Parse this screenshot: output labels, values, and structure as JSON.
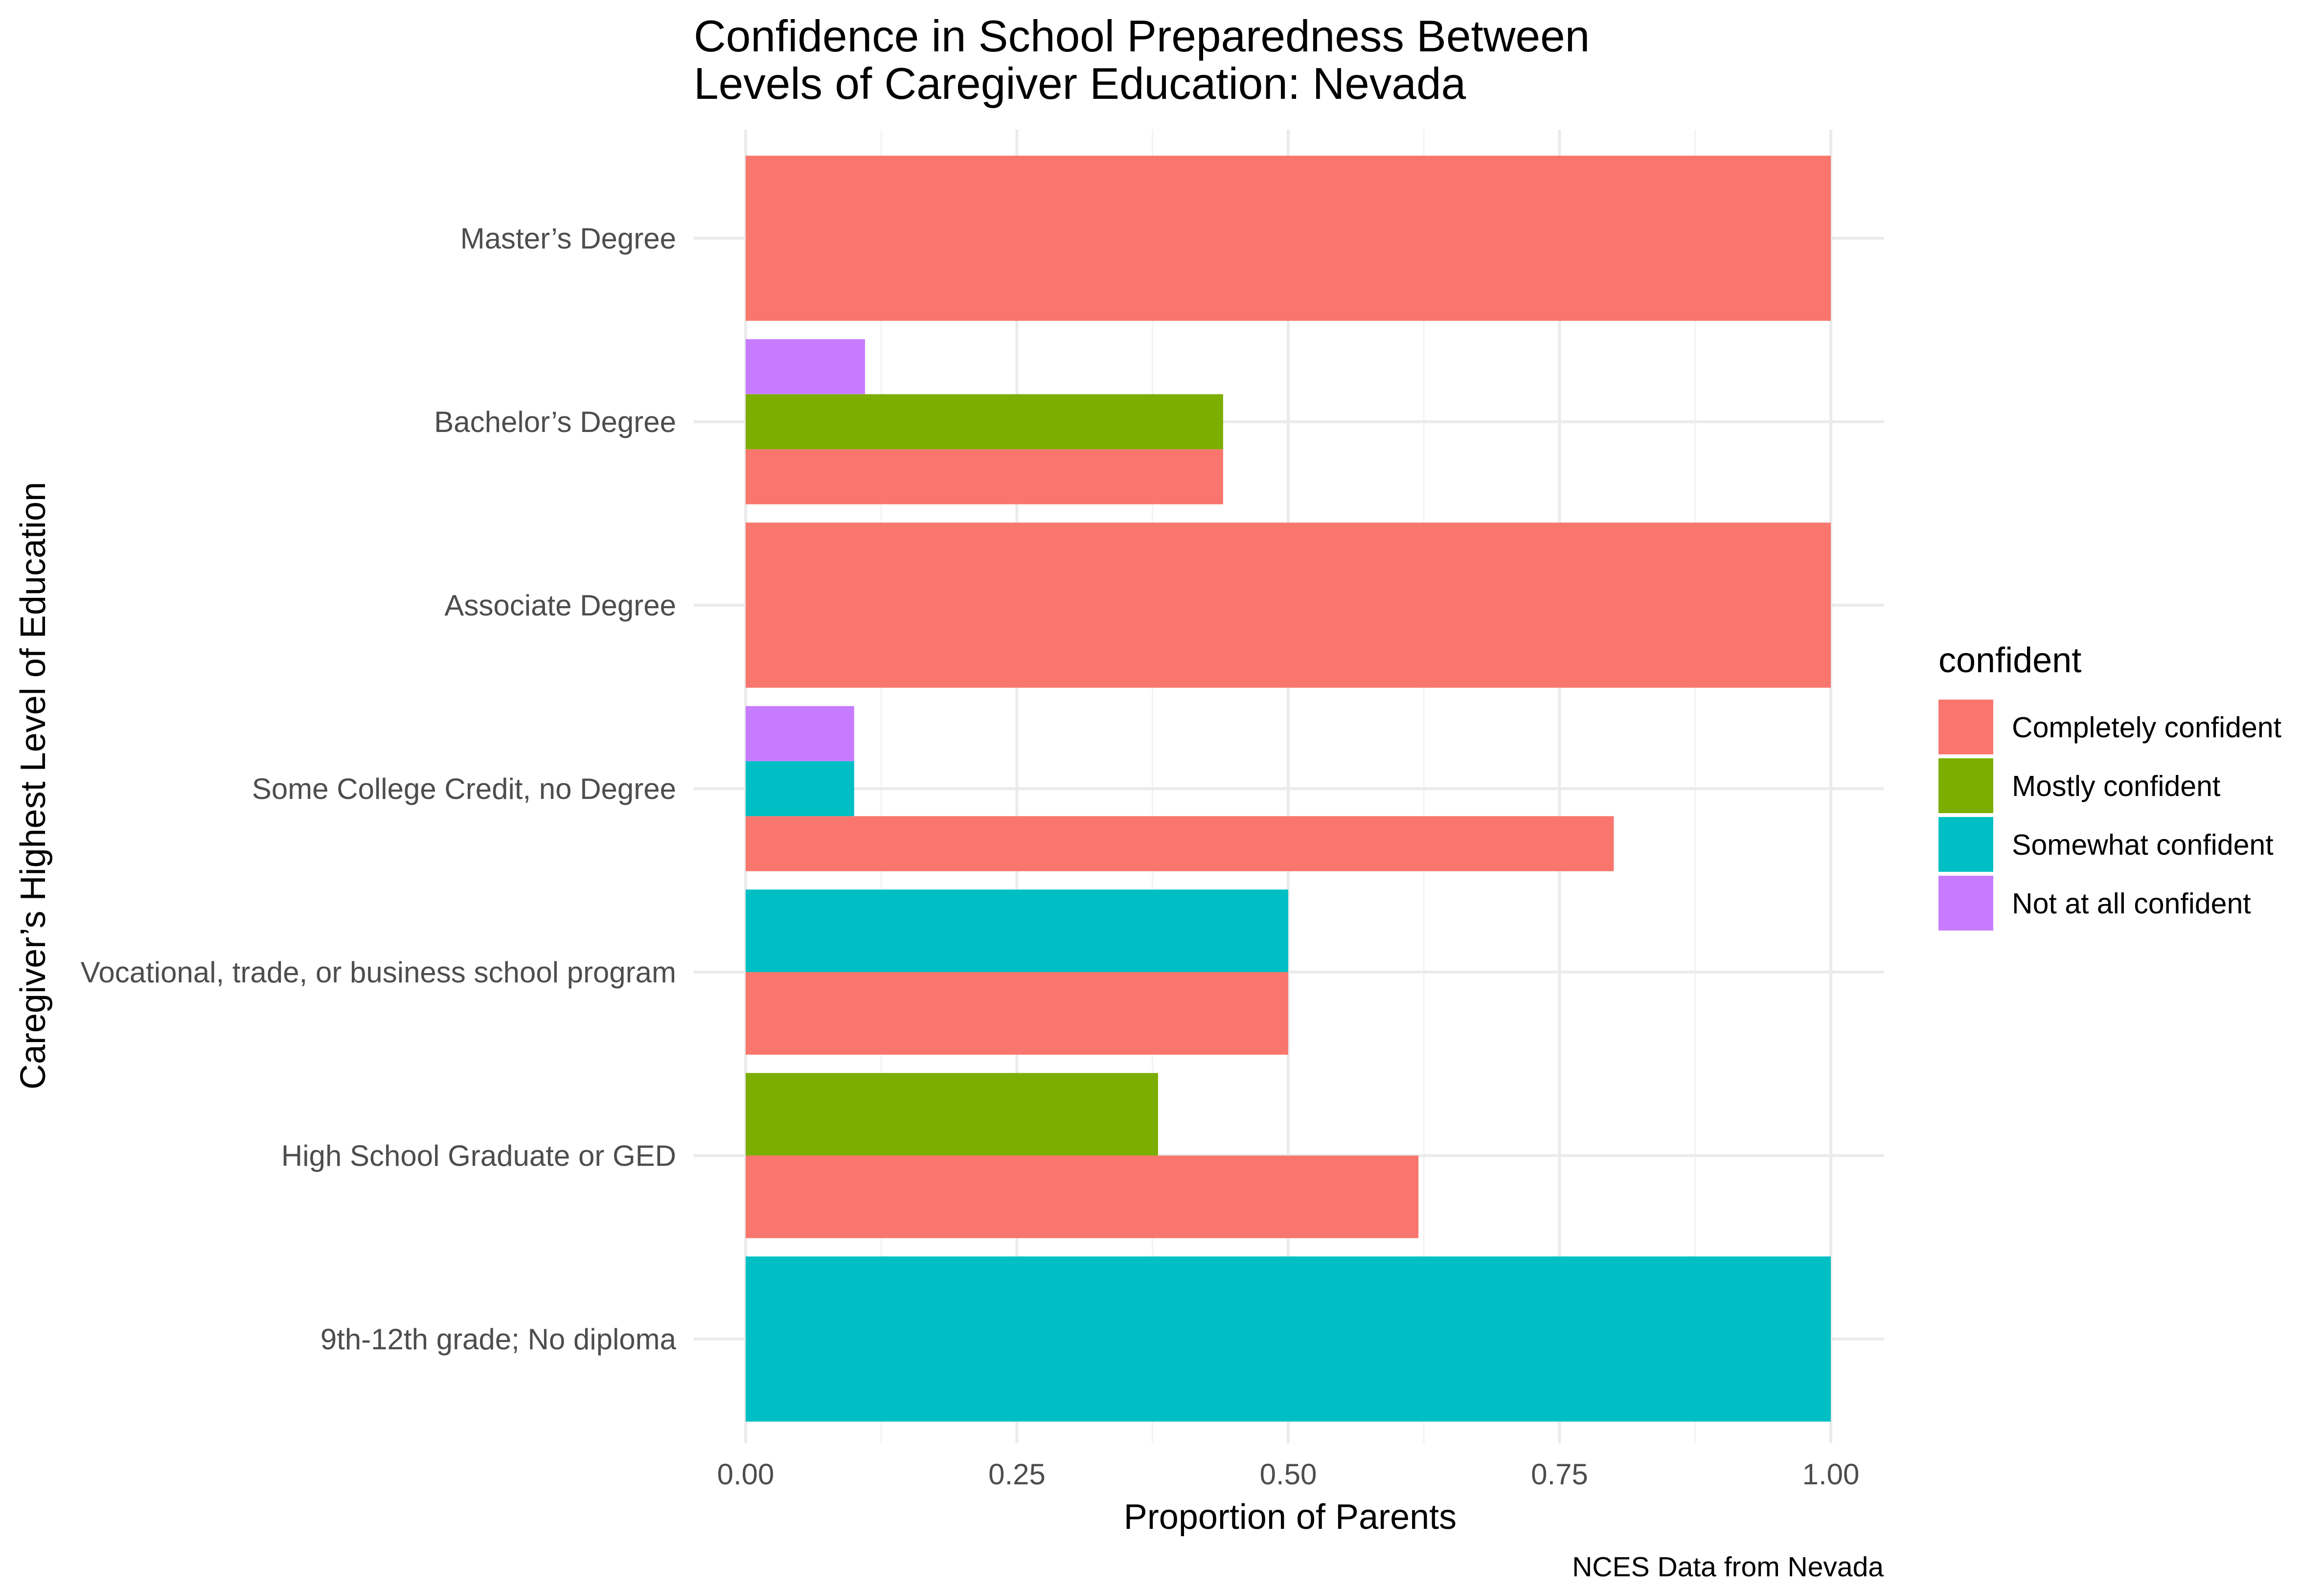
{
  "chart_data": {
    "type": "bar",
    "orientation": "horizontal",
    "position": "dodge",
    "title": "Confidence in School Preparedness Between Levels of Caregiver Education: Nevada",
    "title_lines": [
      "Confidence in School Preparedness Between",
      "Levels of Caregiver Education: Nevada"
    ],
    "xlabel": "Proportion of Parents",
    "ylabel": "Caregiver’s Highest Level of Education",
    "caption": "NCES Data from Nevada",
    "xlim": [
      0,
      1
    ],
    "x_ticks": [
      "0.00",
      "0.25",
      "0.50",
      "0.75",
      "1.00"
    ],
    "categories": [
      "Master’s Degree",
      "Bachelor’s Degree",
      "Associate Degree",
      "Some College Credit, no Degree",
      "Vocational, trade, or business school program",
      "High School Graduate or GED",
      "9th-12th grade; No diploma"
    ],
    "legend": {
      "title": "confident",
      "placement": "right",
      "entries": [
        "Completely confident",
        "Mostly confident",
        "Somewhat confident",
        "Not at all confident"
      ]
    },
    "series": [
      {
        "name": "Completely confident",
        "color": "#F8766D",
        "values": [
          1.0,
          0.44,
          1.0,
          0.8,
          0.5,
          0.62,
          null
        ]
      },
      {
        "name": "Mostly confident",
        "color": "#7CAE00",
        "values": [
          null,
          0.44,
          null,
          null,
          null,
          0.38,
          null
        ]
      },
      {
        "name": "Somewhat confident",
        "color": "#00BFC4",
        "values": [
          null,
          null,
          null,
          0.1,
          0.5,
          null,
          1.0
        ]
      },
      {
        "name": "Not at all confident",
        "color": "#C77CFF",
        "values": [
          null,
          0.11,
          null,
          0.1,
          null,
          null,
          null
        ]
      }
    ],
    "grid": true
  }
}
